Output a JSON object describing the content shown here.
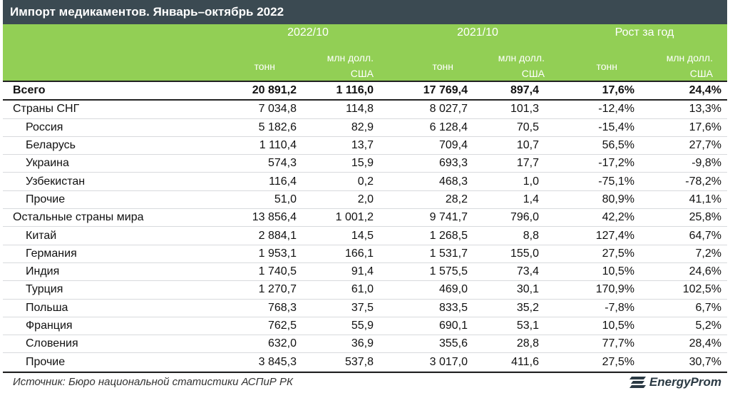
{
  "title": "Импорт медикаментов. Январь–октябрь 2022",
  "header": {
    "groups": [
      "2022/10",
      "2021/10",
      "Рост за год"
    ],
    "tons_label": "тонн",
    "usd_label_line1": "млн долл.",
    "usd_label_line2": "США"
  },
  "chart_data": {
    "type": "table",
    "columns": [
      "",
      "2022/10 тонн",
      "2022/10 млн долл. США",
      "2021/10 тонн",
      "2021/10 млн долл. США",
      "Рост за год тонн",
      "Рост за год млн долл. США"
    ],
    "rows": [
      {
        "name": "Всего",
        "bold": true,
        "indent": false,
        "values": [
          "20 891,2",
          "1 116,0",
          "17 769,4",
          "897,4",
          "17,6%",
          "24,4%"
        ]
      },
      {
        "name": "Страны СНГ",
        "bold": false,
        "indent": false,
        "values": [
          "7 034,8",
          "114,8",
          "8 027,7",
          "101,3",
          "-12,4%",
          "13,3%"
        ]
      },
      {
        "name": "Россия",
        "bold": false,
        "indent": true,
        "values": [
          "5 182,6",
          "82,9",
          "6 128,4",
          "70,5",
          "-15,4%",
          "17,6%"
        ]
      },
      {
        "name": "Беларусь",
        "bold": false,
        "indent": true,
        "values": [
          "1 110,4",
          "13,7",
          "709,4",
          "10,7",
          "56,5%",
          "27,7%"
        ]
      },
      {
        "name": "Украина",
        "bold": false,
        "indent": true,
        "values": [
          "574,3",
          "15,9",
          "693,3",
          "17,7",
          "-17,2%",
          "-9,8%"
        ]
      },
      {
        "name": "Узбекистан",
        "bold": false,
        "indent": true,
        "values": [
          "116,4",
          "0,2",
          "468,3",
          "1,0",
          "-75,1%",
          "-78,2%"
        ]
      },
      {
        "name": "Прочие",
        "bold": false,
        "indent": true,
        "values": [
          "51,0",
          "2,0",
          "28,2",
          "1,4",
          "80,9%",
          "41,1%"
        ]
      },
      {
        "name": "Остальные страны мира",
        "bold": false,
        "indent": false,
        "values": [
          "13 856,4",
          "1 001,2",
          "9 741,7",
          "796,0",
          "42,2%",
          "25,8%"
        ]
      },
      {
        "name": "Китай",
        "bold": false,
        "indent": true,
        "values": [
          "2 884,1",
          "14,5",
          "1 268,5",
          "8,8",
          "127,4%",
          "64,7%"
        ]
      },
      {
        "name": "Германия",
        "bold": false,
        "indent": true,
        "values": [
          "1 953,1",
          "166,1",
          "1 531,7",
          "155,0",
          "27,5%",
          "7,2%"
        ]
      },
      {
        "name": "Индия",
        "bold": false,
        "indent": true,
        "values": [
          "1 740,5",
          "91,4",
          "1 575,5",
          "73,4",
          "10,5%",
          "24,6%"
        ]
      },
      {
        "name": "Турция",
        "bold": false,
        "indent": true,
        "values": [
          "1 270,7",
          "61,0",
          "469,0",
          "30,1",
          "170,9%",
          "102,5%"
        ]
      },
      {
        "name": "Польша",
        "bold": false,
        "indent": true,
        "values": [
          "768,3",
          "37,5",
          "833,5",
          "35,2",
          "-7,8%",
          "6,7%"
        ]
      },
      {
        "name": "Франция",
        "bold": false,
        "indent": true,
        "values": [
          "762,5",
          "55,9",
          "690,1",
          "53,1",
          "10,5%",
          "5,2%"
        ]
      },
      {
        "name": "Словения",
        "bold": false,
        "indent": true,
        "values": [
          "632,0",
          "36,9",
          "355,6",
          "28,8",
          "77,7%",
          "28,4%"
        ]
      },
      {
        "name": "Прочие",
        "bold": false,
        "indent": true,
        "values": [
          "3 845,3",
          "537,8",
          "3 017,0",
          "411,6",
          "27,5%",
          "30,7%"
        ]
      }
    ]
  },
  "footer": {
    "source": "Источник: Бюро национальной статистики АСПиР РК",
    "logo_text": "EnergyProm",
    "logo_icon": "energyprom-logo-icon"
  },
  "colors": {
    "title_bg": "#3b4a52",
    "header_bg": "#92cf55",
    "header_text": "#ffffff"
  }
}
